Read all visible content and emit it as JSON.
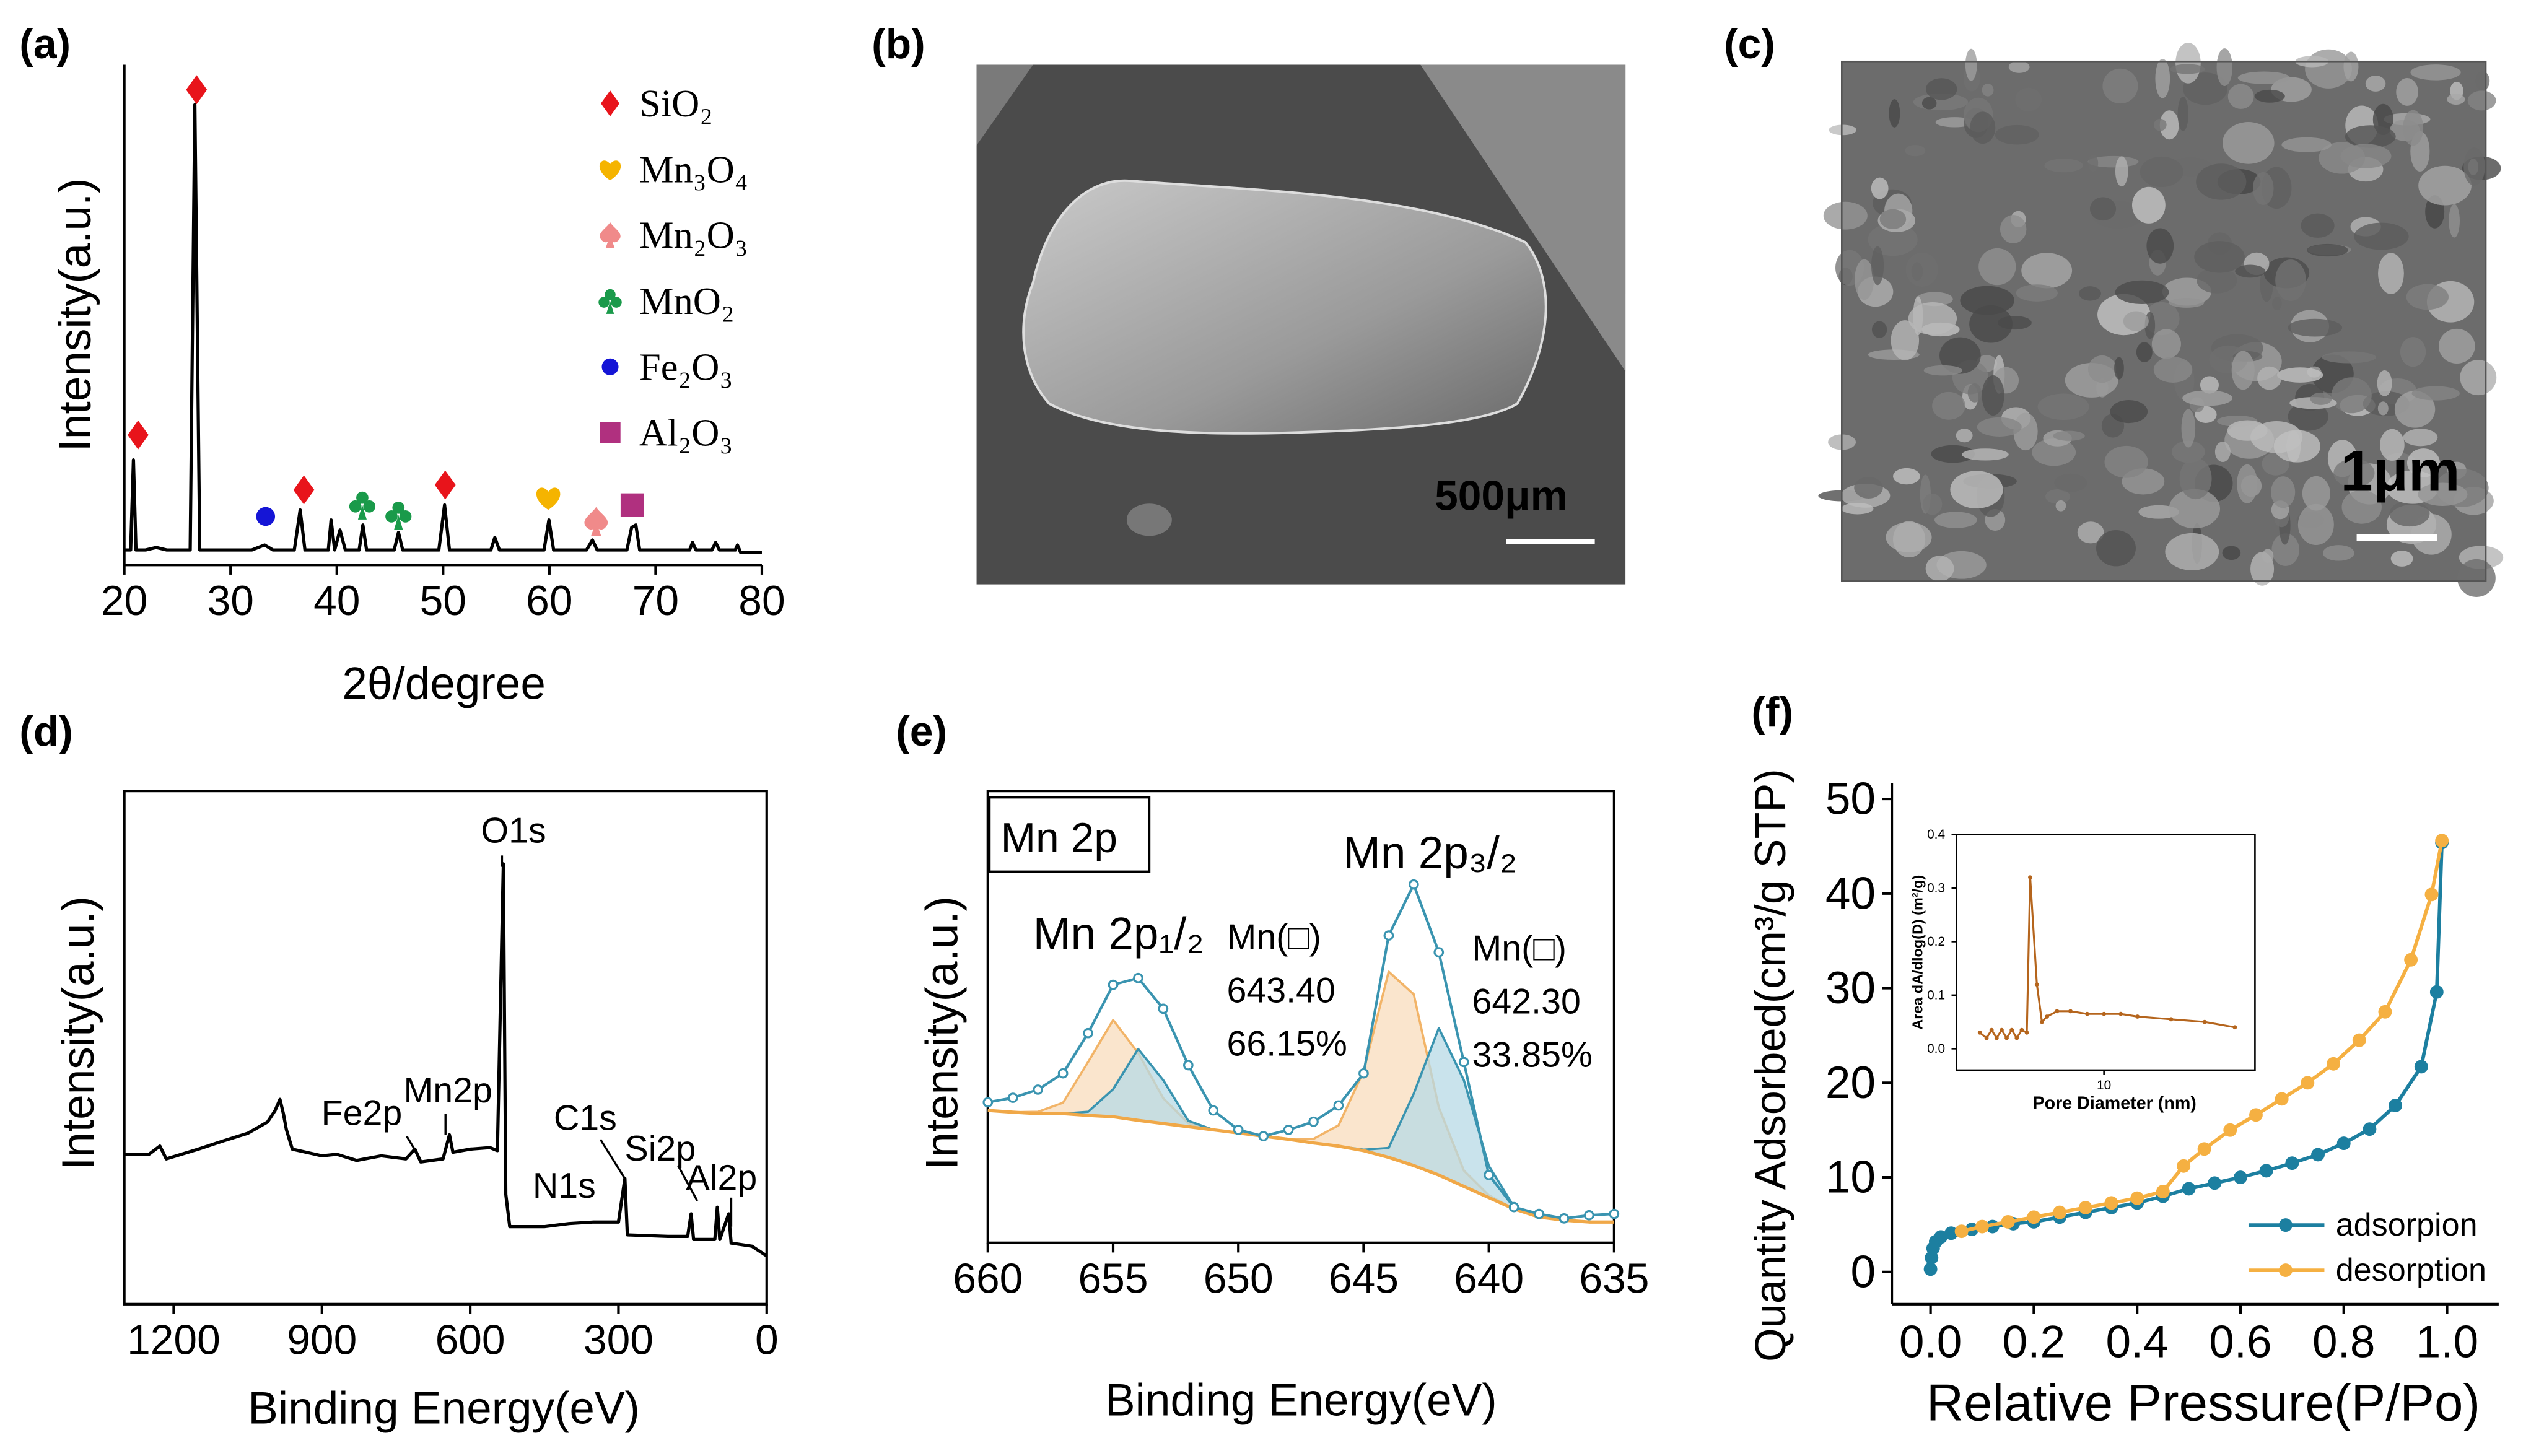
{
  "chart_data": [
    {
      "panel": "(a)",
      "type": "line",
      "x_label": "2θ/degree",
      "y_label": "Intensity(a.u.)",
      "xlim": [
        20,
        80
      ],
      "xticks": [
        20,
        30,
        40,
        50,
        60,
        70,
        80
      ],
      "ylim": [
        0,
        100
      ],
      "color": "#000000",
      "x": [
        20,
        20.6,
        20.86,
        21.1,
        22,
        23,
        24,
        25,
        26.2,
        26.64,
        27.1,
        28,
        30,
        32,
        33.2,
        34,
        36,
        36.55,
        37,
        39.2,
        39.46,
        39.8,
        40.3,
        40.8,
        42.1,
        42.45,
        42.8,
        45.4,
        45.8,
        46.2,
        49.6,
        50.14,
        50.6,
        54.5,
        54.87,
        55.3,
        59.5,
        59.96,
        60.4,
        63.5,
        64.05,
        64.5,
        67.3,
        67.74,
        68.14,
        68.5,
        73.2,
        73.47,
        73.8,
        75.3,
        75.65,
        76,
        77.5,
        77.7,
        78,
        80
      ],
      "values": [
        3,
        3,
        21,
        3,
        3,
        3.5,
        3,
        3,
        3,
        92,
        3,
        3,
        3,
        3,
        4,
        3,
        3,
        11,
        3,
        3,
        9,
        3,
        7,
        3,
        3,
        8,
        3,
        3,
        6.5,
        3,
        3,
        12,
        3,
        3,
        5.5,
        3,
        3,
        9,
        3,
        3,
        5,
        3,
        3,
        7.5,
        8,
        3,
        3,
        4.5,
        3,
        3,
        4.5,
        3,
        3,
        4,
        2.5,
        2.5
      ],
      "legend_position": "upper right",
      "series": [
        {
          "name": "SiO₂",
          "color": "#e8141b",
          "marker": "diamond",
          "x": [
            21.3,
            26.8,
            36.9,
            50.2
          ],
          "values": [
            26,
            95,
            15,
            16
          ]
        },
        {
          "name": "Mn₃O₄",
          "color": "#f5b400",
          "marker": "heart",
          "x": [
            59.9
          ],
          "values": [
            13.5
          ]
        },
        {
          "name": "Mn₂O₃",
          "color": "#f08a8a",
          "marker": "spade",
          "x": [
            64.4
          ],
          "values": [
            8.7
          ]
        },
        {
          "name": "MnO₂",
          "color": "#1a9a4a",
          "marker": "club",
          "x": [
            42.4,
            45.8
          ],
          "values": [
            12,
            10
          ]
        },
        {
          "name": "Fe₂O₃",
          "color": "#1515d6",
          "marker": "circle",
          "x": [
            33.3
          ],
          "values": [
            9.7
          ]
        },
        {
          "name": "Al₂O₃",
          "color": "#b0307f",
          "marker": "square",
          "x": [
            67.8
          ],
          "values": [
            12
          ]
        }
      ]
    },
    {
      "panel": "(b)",
      "type": "image",
      "scale_bar": "500μm"
    },
    {
      "panel": "(c)",
      "type": "image",
      "scale_bar": "1μm"
    },
    {
      "panel": "(d)",
      "type": "line",
      "x_label": "Binding Energy(eV)",
      "y_label": "Intensity(a.u.)",
      "xlim": [
        1300,
        0
      ],
      "xticks": [
        1200,
        900,
        600,
        300,
        0
      ],
      "ylim": [
        0,
        100
      ],
      "color": "#000000",
      "x": [
        1300,
        1250,
        1228,
        1215,
        1150,
        1100,
        1050,
        1010,
        995,
        985,
        978,
        972,
        960,
        900,
        870,
        830,
        780,
        730,
        712,
        700,
        655,
        642,
        635,
        600,
        560,
        545,
        533,
        528,
        520,
        450,
        400,
        350,
        300,
        287,
        282,
        200,
        160,
        153,
        148,
        105,
        100,
        95,
        77,
        72,
        30,
        0
      ],
      "values": [
        29.2,
        29.2,
        30.8,
        28.3,
        30.2,
        31.8,
        33.3,
        35.5,
        37.7,
        39.9,
        37.1,
        34,
        30.2,
        28.9,
        29.2,
        28,
        28.9,
        28.3,
        30.2,
        27.7,
        28.3,
        33,
        29.6,
        30.2,
        30.5,
        29.9,
        85.8,
        21.4,
        15.1,
        15.1,
        15.7,
        16,
        16,
        24.5,
        13.5,
        13.2,
        13.2,
        17.6,
        12.6,
        12.6,
        18.9,
        12.6,
        17.6,
        11.9,
        11.3,
        9.4
      ],
      "annotations": [
        "O1s",
        "Fe2p",
        "Mn2p",
        "C1s",
        "N1s",
        "Si2p",
        "Al2p"
      ]
    },
    {
      "panel": "(e)",
      "type": "line",
      "x_label": "Binding Energy(eV)",
      "y_label": "Intensity(a.u.)",
      "xlim": [
        660,
        635
      ],
      "xticks": [
        660,
        655,
        650,
        645,
        640,
        635
      ],
      "ylim": [
        0,
        100
      ],
      "annotations": [
        "Mn 2p",
        "Mn 2p₁/₂",
        "Mn 2p₃/₂"
      ],
      "x": [
        660,
        659,
        658,
        657,
        656,
        655,
        654,
        653,
        652,
        651,
        650,
        649,
        648,
        647,
        646,
        645,
        644,
        643,
        642,
        641,
        640,
        639,
        638,
        637,
        636,
        635
      ],
      "background": {
        "color": "#f0a848",
        "values": [
          29.3,
          28.9,
          28.6,
          28.6,
          28.2,
          27.9,
          27.1,
          26.4,
          25.7,
          25,
          24.3,
          23.6,
          22.9,
          22.1,
          21.4,
          20.4,
          18.9,
          17.1,
          15,
          12.5,
          10,
          7.5,
          5.7,
          5,
          4.6,
          4.6
        ]
      },
      "envelope": {
        "color": "#3a94b0",
        "values": [
          31.1,
          32.1,
          33.9,
          37.5,
          46.4,
          57.1,
          58.6,
          51.8,
          39.3,
          29.3,
          25,
          23.6,
          25,
          26.8,
          30.4,
          37.5,
          68,
          79.3,
          64.3,
          40,
          15,
          7.9,
          6.4,
          5.4,
          6.1,
          6.4
        ]
      },
      "series": [
        {
          "name": "Mn(□)",
          "labels": [
            "643.40",
            "66.15%"
          ],
          "color": "#f2b468",
          "fill": "#f8dcbc",
          "values": [
            29.3,
            28.9,
            29,
            31,
            40,
            49.3,
            42,
            32,
            26.5,
            25,
            24.3,
            23.6,
            23,
            23,
            26,
            38,
            60,
            55,
            30,
            16,
            10.5,
            7.5,
            5.7,
            5,
            4.6,
            4.6
          ]
        },
        {
          "name": "Mn(□)",
          "labels": [
            "642.30",
            "33.85%"
          ],
          "color": "#3a94b0",
          "fill": "#b7dae6",
          "values": [
            29.3,
            28.9,
            28.6,
            28.6,
            29,
            34,
            42.9,
            36,
            27,
            25,
            24.3,
            23.6,
            22.9,
            22.1,
            21.4,
            20.6,
            21,
            33,
            47.5,
            36,
            17,
            8,
            5.7,
            5,
            4.6,
            4.6
          ]
        }
      ]
    },
    {
      "panel": "(f)",
      "type": "line",
      "x_label": "Relative Pressure(P/Po)",
      "y_label": "Quantity Adsorbed(cm³/g STP)",
      "xlim": [
        -0.075,
        1.1
      ],
      "xticks": [
        {
          "value": 0,
          "label": "0.0"
        },
        {
          "value": 0.2,
          "label": "0.2"
        },
        {
          "value": 0.4,
          "label": "0.4"
        },
        {
          "value": 0.6,
          "label": "0.6"
        },
        {
          "value": 0.8,
          "label": "0.8"
        },
        {
          "value": 1,
          "label": "1.0"
        }
      ],
      "ylim": [
        -3.4,
        51.7
      ],
      "yticks": [
        0,
        10,
        20,
        30,
        40,
        50
      ],
      "legend_position": "lower right",
      "series": [
        {
          "name": "adsorpion",
          "color": "#1c7fa0",
          "x": [
            0,
            0.002,
            0.005,
            0.01,
            0.02,
            0.04,
            0.08,
            0.12,
            0.16,
            0.2,
            0.25,
            0.3,
            0.35,
            0.4,
            0.45,
            0.5,
            0.55,
            0.6,
            0.65,
            0.7,
            0.75,
            0.8,
            0.85,
            0.9,
            0.95,
            0.98,
            0.99
          ],
          "values": [
            0.3,
            1.5,
            2.5,
            3.2,
            3.7,
            4.1,
            4.5,
            4.8,
            5.1,
            5.3,
            5.8,
            6.3,
            6.8,
            7.3,
            8.0,
            8.8,
            9.4,
            10.0,
            10.7,
            11.5,
            12.4,
            13.6,
            15.1,
            17.6,
            21.7,
            29.6,
            45.4
          ]
        },
        {
          "name": "desorption",
          "color": "#f5b042",
          "x": [
            0.99,
            0.97,
            0.93,
            0.88,
            0.83,
            0.78,
            0.73,
            0.68,
            0.63,
            0.58,
            0.53,
            0.49,
            0.45,
            0.4,
            0.35,
            0.3,
            0.25,
            0.2,
            0.15,
            0.1,
            0.06
          ],
          "values": [
            45.6,
            39.9,
            33,
            27.5,
            24.5,
            22,
            20,
            18.3,
            16.6,
            15,
            13,
            11.2,
            8.5,
            7.8,
            7.3,
            6.8,
            6.3,
            5.8,
            5.3,
            4.8,
            4.3
          ]
        }
      ],
      "inset": {
        "type": "line",
        "x_label": "Pore Diameter (nm)",
        "y_label": "Area dA/dlog(D) (m²/g)",
        "color": "#b5651d",
        "xlim": [
          1.2,
          19
        ],
        "xticks": [
          10
        ],
        "ylim": [
          -0.04,
          0.4
        ],
        "yticks": [
          {
            "value": 0,
            "label": "0.0"
          },
          {
            "value": 0.1,
            "label": "0.1"
          },
          {
            "value": 0.2,
            "label": "0.2"
          },
          {
            "value": 0.3,
            "label": "0.3"
          },
          {
            "value": 0.4,
            "label": "0.4"
          }
        ],
        "x": [
          2.6,
          3.0,
          3.3,
          3.6,
          3.9,
          4.2,
          4.5,
          4.8,
          5.1,
          5.4,
          5.6,
          6.0,
          6.3,
          6.6,
          7.2,
          8,
          9,
          10,
          11,
          12,
          14,
          16,
          17.8
        ],
        "values": [
          0.03,
          0.02,
          0.035,
          0.02,
          0.035,
          0.02,
          0.035,
          0.02,
          0.035,
          0.03,
          0.32,
          0.12,
          0.05,
          0.06,
          0.07,
          0.07,
          0.065,
          0.065,
          0.065,
          0.06,
          0.055,
          0.05,
          0.04
        ]
      }
    }
  ]
}
